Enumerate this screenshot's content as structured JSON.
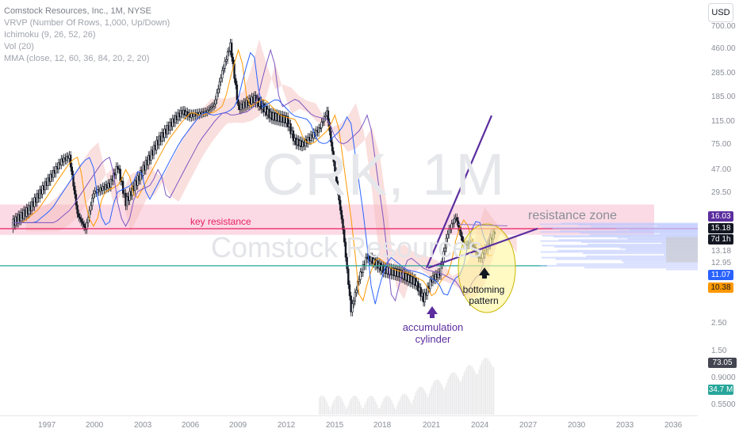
{
  "legend": {
    "title": "Comstock Resources, Inc., 1M, NYSE",
    "lines": [
      "VRVP (Number Of Rows, 1,000, Up/Down)",
      "Ichimoku (9, 26, 52, 26)",
      "Vol (20)",
      "MMA (close, 12, 60, 36, 84, 20, 2, 20)"
    ]
  },
  "watermark": {
    "ticker": "CRK, 1M",
    "name": "Comstock Resources"
  },
  "currency_button": "USD",
  "annotations": {
    "key_resistance": "key resistance",
    "resistance_zone": "resistance zone",
    "accumulation_line1": "accumulation",
    "accumulation_line2": "cylinder",
    "bottoming_line1": "bottoming",
    "bottoming_line2": "pattern"
  },
  "colors": {
    "key_resistance": "#e91e63",
    "support_line": "#26a69a",
    "annotation_purple": "#5b2d9e",
    "bottoming_fill": "#fff59d",
    "resistance_zone_fill": "#f8bbd0",
    "cloud_red": "#f5b7b7",
    "cloud_green": "#b7e1b7",
    "candle": "#131722",
    "ma_orange": "#ff9800",
    "ma_blue": "#2962ff",
    "ma_purple": "#7e57c2"
  },
  "chart_data": {
    "type": "candlestick",
    "scale": "log",
    "y_tick_labels": [
      "700.00",
      "460.00",
      "285.00",
      "185.00",
      "115.00",
      "75.00",
      "47.00",
      "29.50",
      "13.18",
      "12.95",
      "2.50",
      "1.50",
      "0.9000",
      "0.5500"
    ],
    "x_tick_labels": [
      "1997",
      "2000",
      "2003",
      "2006",
      "2009",
      "2012",
      "2015",
      "2018",
      "2021",
      "2024",
      "2027",
      "2030",
      "2033",
      "2036"
    ],
    "price_tags": [
      {
        "label": "16.03",
        "bg": "#5b2d9e",
        "fg": "#ffffff"
      },
      {
        "label": "15.18",
        "bg": "#131722",
        "fg": "#ffffff"
      },
      {
        "label": "7d 1h",
        "bg": "#131722",
        "fg": "#ffffff"
      },
      {
        "label": "11.07",
        "bg": "#2962ff",
        "fg": "#ffffff"
      },
      {
        "label": "10.38",
        "bg": "#ff9800",
        "fg": "#131722"
      },
      {
        "label": "73.05 M",
        "bg": "#434651",
        "fg": "#ffffff"
      },
      {
        "label": "34.7 M",
        "bg": "#26a69a",
        "fg": "#ffffff"
      }
    ],
    "key_resistance_level": 15.18,
    "support_level": 7.5,
    "close_path": [
      [
        1995.0,
        17
      ],
      [
        1996.0,
        22
      ],
      [
        1997.0,
        35
      ],
      [
        1998.0,
        55
      ],
      [
        1998.5,
        60
      ],
      [
        1999.0,
        20
      ],
      [
        1999.5,
        15
      ],
      [
        2000.0,
        30
      ],
      [
        2001.0,
        35
      ],
      [
        2001.5,
        50
      ],
      [
        2002.0,
        25
      ],
      [
        2003.0,
        45
      ],
      [
        2004.0,
        80
      ],
      [
        2005.0,
        120
      ],
      [
        2005.5,
        140
      ],
      [
        2006.0,
        130
      ],
      [
        2007.0,
        140
      ],
      [
        2007.5,
        160
      ],
      [
        2008.0,
        300
      ],
      [
        2008.5,
        500
      ],
      [
        2009.0,
        150
      ],
      [
        2010.0,
        180
      ],
      [
        2011.0,
        130
      ],
      [
        2012.0,
        120
      ],
      [
        2012.5,
        80
      ],
      [
        2013.0,
        75
      ],
      [
        2014.0,
        100
      ],
      [
        2014.5,
        140
      ],
      [
        2015.0,
        45
      ],
      [
        2015.5,
        15
      ],
      [
        2016.0,
        3.2
      ],
      [
        2016.5,
        6
      ],
      [
        2017.0,
        9
      ],
      [
        2018.0,
        7
      ],
      [
        2019.0,
        6.5
      ],
      [
        2020.0,
        5.5
      ],
      [
        2020.5,
        4
      ],
      [
        2021.0,
        5.8
      ],
      [
        2021.5,
        6.5
      ],
      [
        2022.0,
        14
      ],
      [
        2022.5,
        19
      ],
      [
        2023.0,
        11
      ],
      [
        2023.5,
        11.5
      ],
      [
        2024.0,
        8.5
      ],
      [
        2024.5,
        11
      ],
      [
        2025.0,
        15.18
      ]
    ],
    "volume_unit": "M",
    "volume_last": 34.7,
    "volume_avg": 73.05
  }
}
